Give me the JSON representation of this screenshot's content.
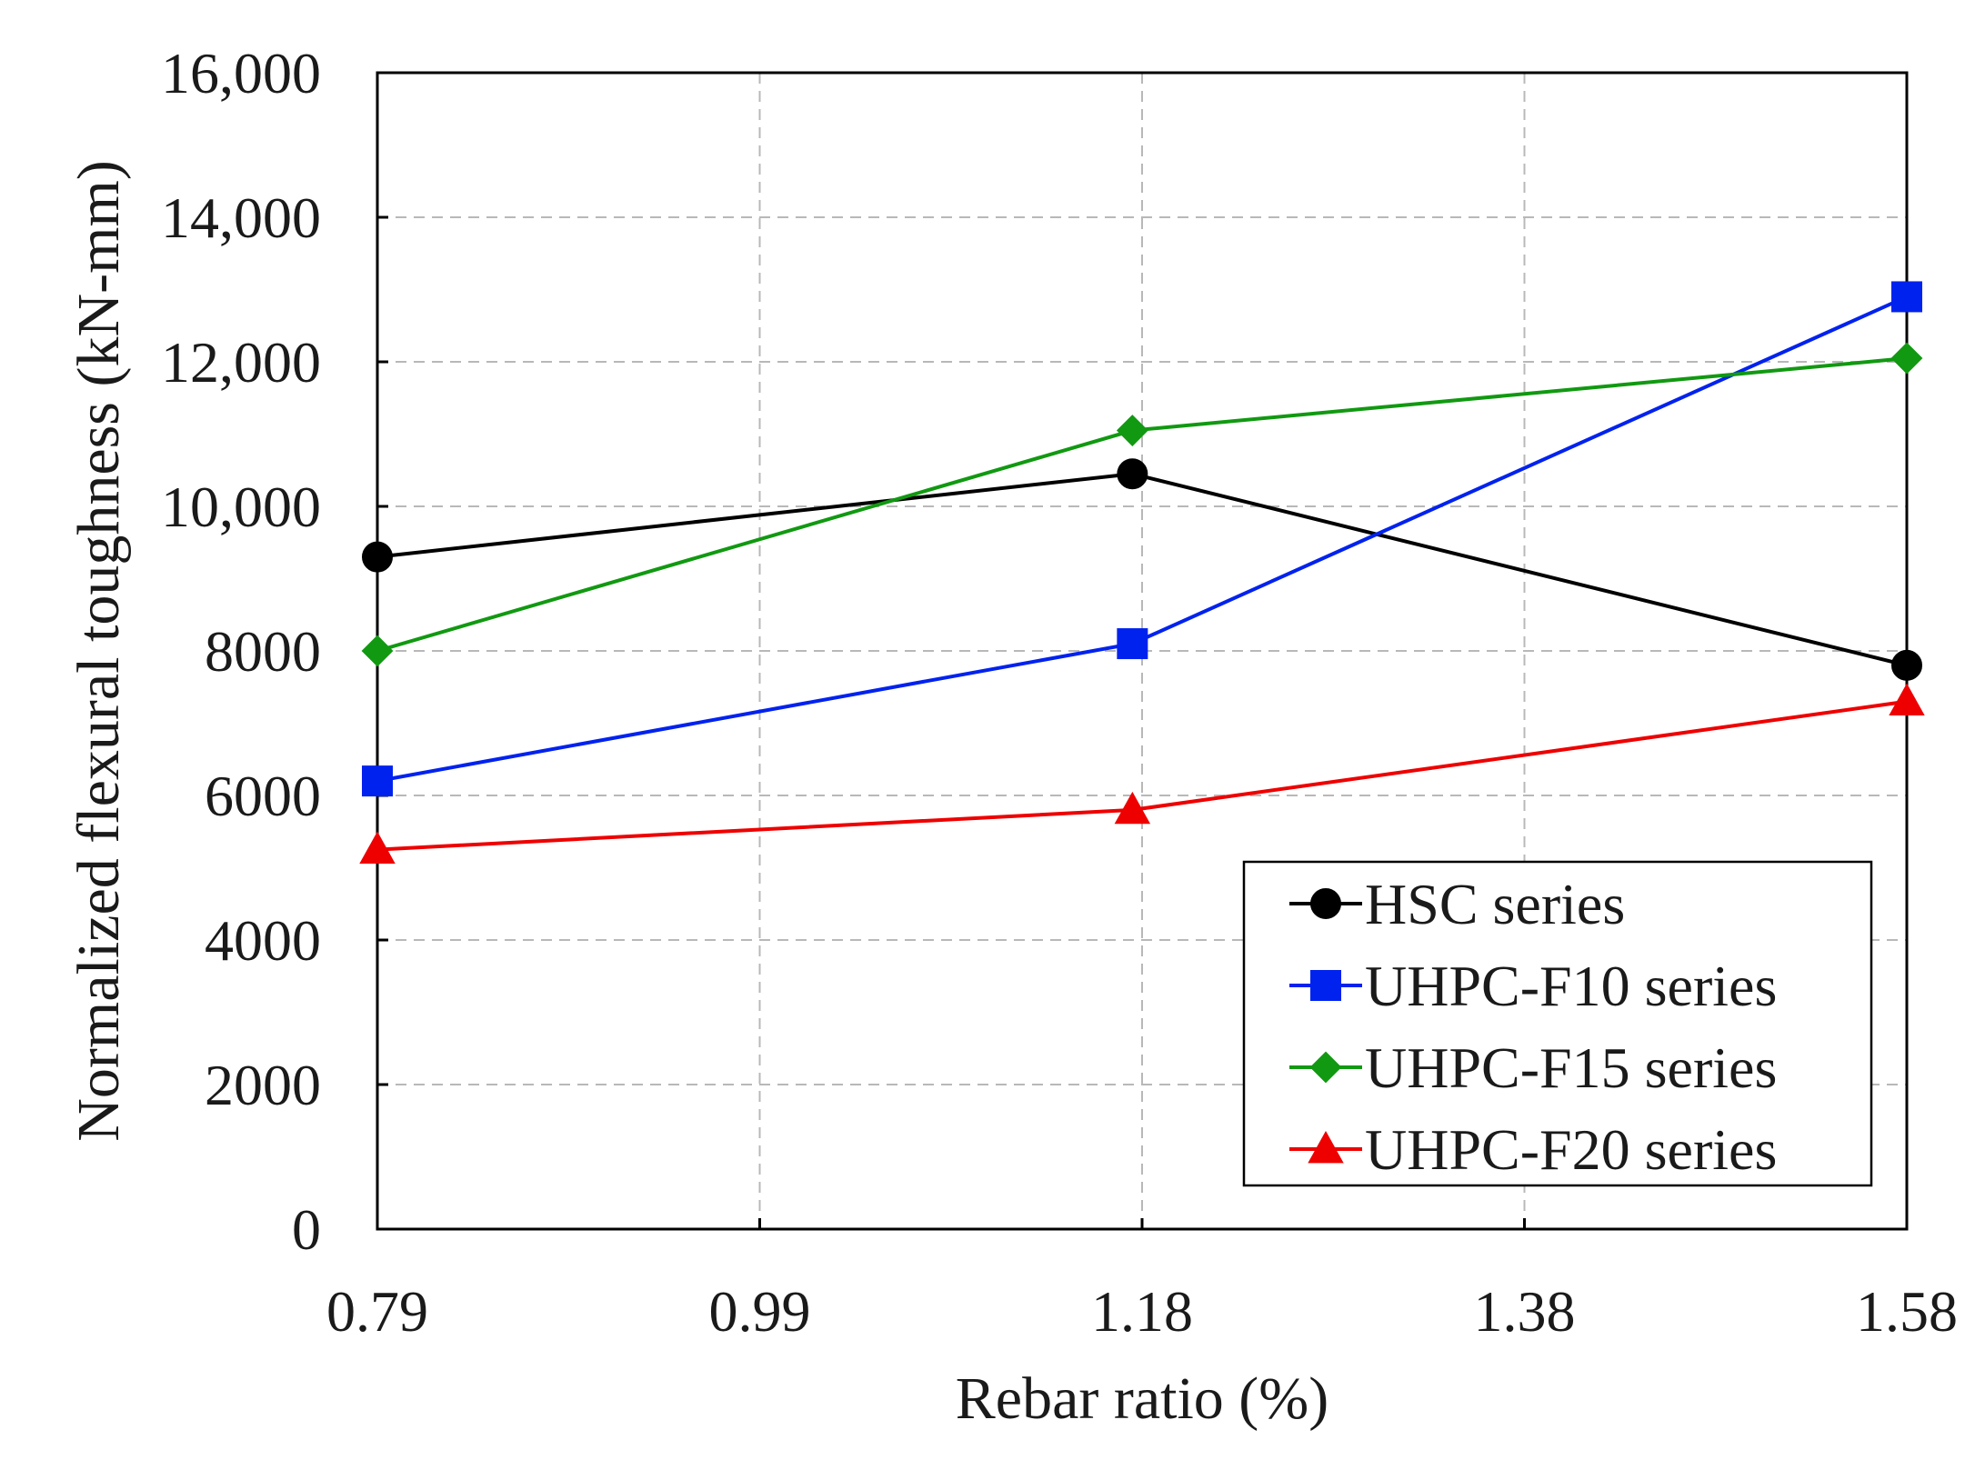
{
  "chart_data": {
    "type": "line",
    "xlabel": "Rebar ratio (%)",
    "ylabel": "Normalized flexural toughness (kN-mm)",
    "x_ticks": [
      "0.79",
      "0.99",
      "1.18",
      "1.38",
      "1.58"
    ],
    "y_ticks": [
      "0",
      "2000",
      "4000",
      "6000",
      "8000",
      "10,000",
      "12,000",
      "14,000",
      "16,000"
    ],
    "y_tick_values": [
      0,
      2000,
      4000,
      6000,
      8000,
      10000,
      12000,
      14000,
      16000
    ],
    "xlim": [
      0.79,
      1.58
    ],
    "ylim": [
      0,
      16000
    ],
    "grid": true,
    "legend_position": "bottom-right",
    "x": [
      0.79,
      1.18,
      1.58
    ],
    "series": [
      {
        "name": "HSC series",
        "values": [
          9300,
          10450,
          7800
        ],
        "color": "#000000",
        "marker": "circle"
      },
      {
        "name": "UHPC-F10 series",
        "values": [
          6200,
          8100,
          12900
        ],
        "color": "#0022ee",
        "marker": "square"
      },
      {
        "name": "UHPC-F15 series",
        "values": [
          8000,
          11050,
          12050
        ],
        "color": "#119911",
        "marker": "diamond"
      },
      {
        "name": "UHPC-F20 series",
        "values": [
          5250,
          5800,
          7300
        ],
        "color": "#ee0000",
        "marker": "triangle"
      }
    ]
  }
}
